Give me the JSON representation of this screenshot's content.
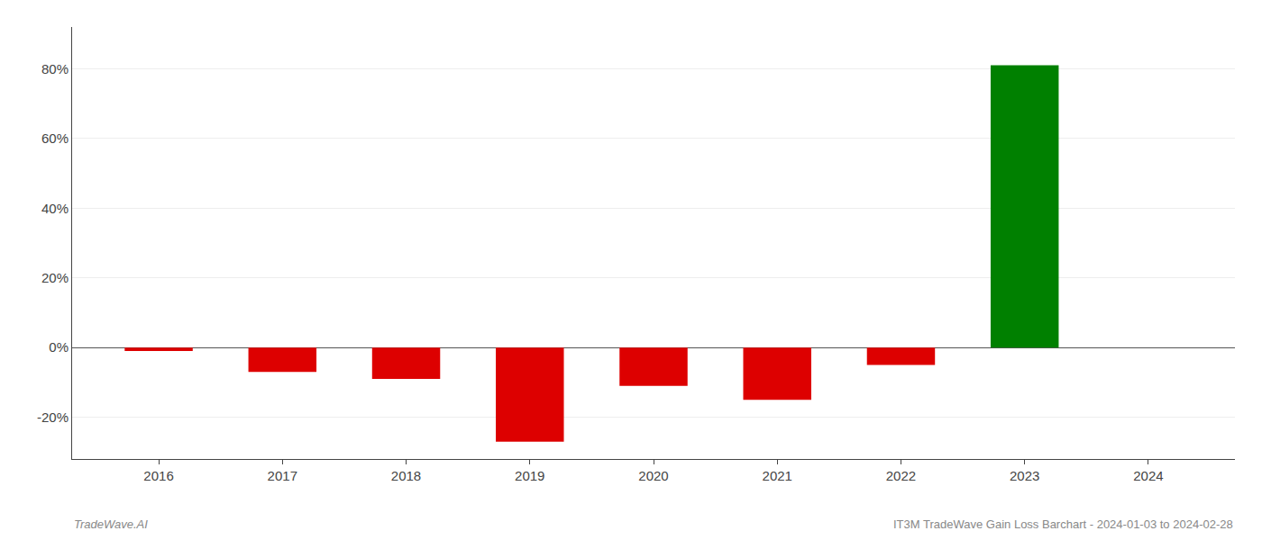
{
  "chart_data": {
    "type": "bar",
    "x": [
      2016,
      2017,
      2018,
      2019,
      2020,
      2021,
      2022,
      2023
    ],
    "values": [
      -0.01,
      -0.07,
      -0.09,
      -0.27,
      -0.11,
      -0.15,
      -0.05,
      0.81
    ],
    "colors": [
      "#dd0000",
      "#dd0000",
      "#dd0000",
      "#dd0000",
      "#dd0000",
      "#dd0000",
      "#dd0000",
      "#008000"
    ],
    "xlim": [
      2015.3,
      2024.7
    ],
    "xticks": [
      2016,
      2017,
      2018,
      2019,
      2020,
      2021,
      2022,
      2023,
      2024
    ],
    "ylim": [
      -0.32,
      0.92
    ],
    "yticks": [
      {
        "value": -0.2,
        "label": "-20%"
      },
      {
        "value": 0.0,
        "label": "0%"
      },
      {
        "value": 0.2,
        "label": "20%"
      },
      {
        "value": 0.4,
        "label": "40%"
      },
      {
        "value": 0.6,
        "label": "60%"
      },
      {
        "value": 0.8,
        "label": "80%"
      }
    ],
    "grid": true,
    "annotations": [
      "TradeWave.AI",
      "IT3M TradeWave Gain Loss Barchart - 2024-01-03 to 2024-02-28"
    ]
  }
}
